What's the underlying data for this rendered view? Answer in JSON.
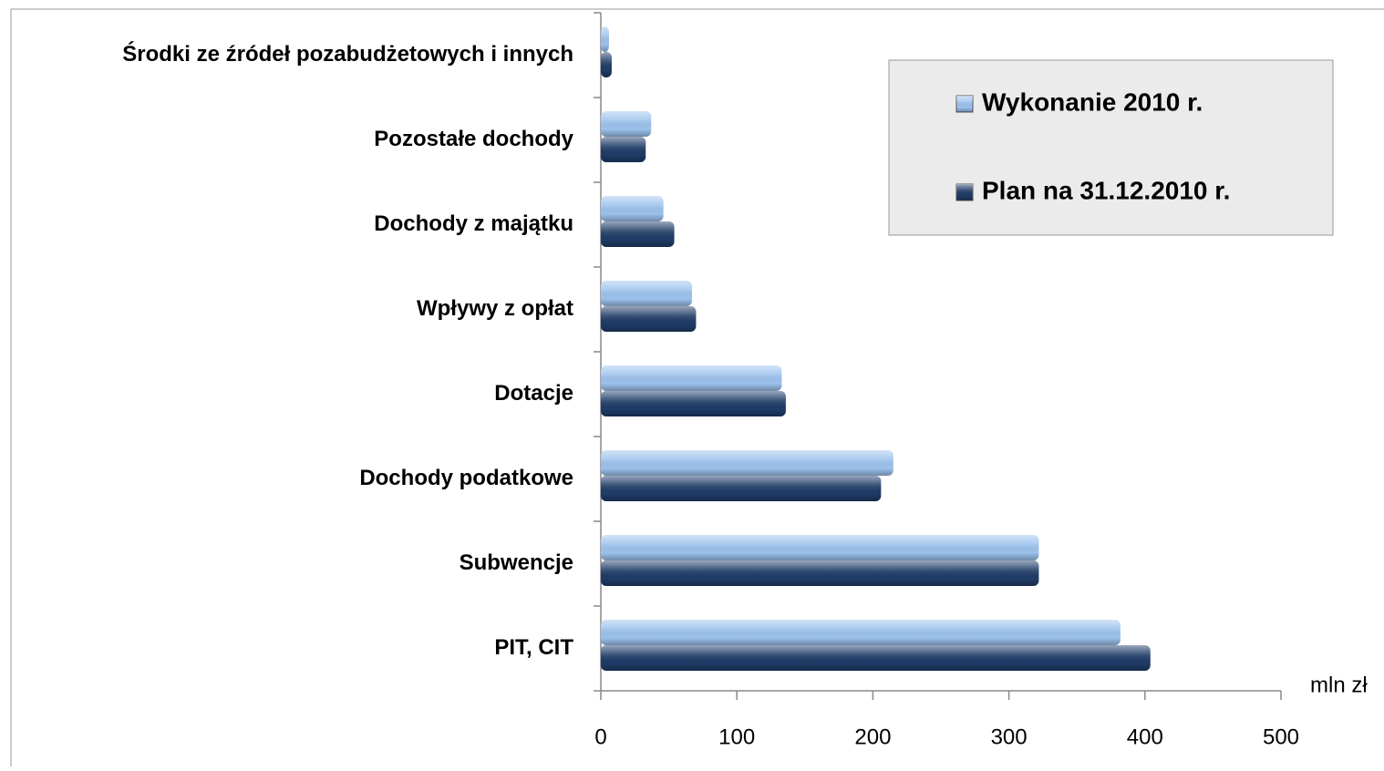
{
  "chart_data": {
    "type": "barh",
    "categories": [
      "Środki ze źródeł pozabudżetowych i innych",
      "Pozostałe dochody",
      "Dochody z majątku",
      "Wpływy z opłat",
      "Dotacje",
      "Dochody podatkowe",
      "Subwencje",
      "PIT, CIT"
    ],
    "series": [
      {
        "name": "Wykonanie 2010 r.",
        "color": "#9cc2ee",
        "values": [
          6,
          37,
          46,
          67,
          133,
          215,
          322,
          382
        ]
      },
      {
        "name": "Plan na 31.12.2010 r.",
        "color": "#1f3c68",
        "values": [
          8,
          33,
          54,
          70,
          136,
          206,
          322,
          404
        ]
      }
    ],
    "xlabel": "mln zł",
    "xlim": [
      0,
      500
    ],
    "xticks": [
      0,
      100,
      200,
      300,
      400,
      500
    ],
    "legend": "top-right"
  }
}
